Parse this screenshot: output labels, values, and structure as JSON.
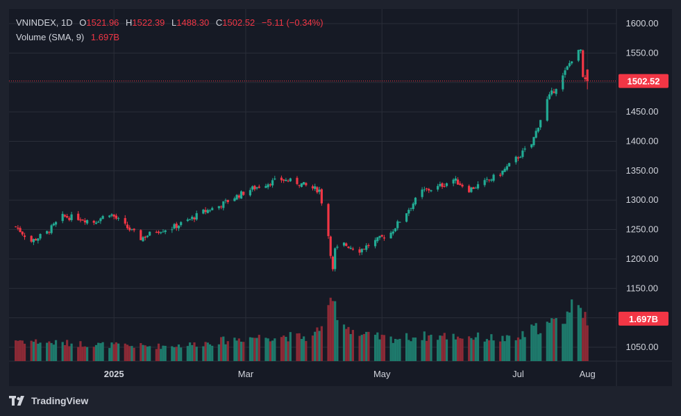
{
  "symbol": "VNINDEX",
  "interval": "1D",
  "ohlc": {
    "open_label": "O",
    "open": "1521.96",
    "high_label": "H",
    "high": "1522.39",
    "low_label": "L",
    "low": "1488.30",
    "close_label": "C",
    "close": "1502.52",
    "change": "−5.11 (−0.34%)"
  },
  "volume_legend": {
    "label": "Volume (SMA, 9)",
    "value": "1.697B"
  },
  "last_price_badge": "1502.52",
  "volume_badge": "1.697B",
  "brand": "TradingView",
  "colors": {
    "up": "#22ab94",
    "down": "#f23645",
    "up_volume": "#1e7a6c",
    "down_volume": "#8c2a36",
    "background": "#161a25",
    "frame": "#1e222d",
    "grid": "#2a2e39",
    "text": "#d1d4dc"
  },
  "chart_data": {
    "type": "candlestick",
    "y_ticks": [
      1050,
      1100,
      1150,
      1200,
      1250,
      1300,
      1350,
      1400,
      1450,
      1500,
      1550,
      1600
    ],
    "y_tick_labels": [
      "1050.00",
      "1100.00",
      "1150.00",
      "1200.00",
      "1250.00",
      "1300.00",
      "1350.00",
      "1400.00",
      "1450.00",
      "1500.00",
      "1550.00",
      "1600.00"
    ],
    "ylim": [
      1025,
      1620
    ],
    "x_ticks": [
      {
        "label": "2025",
        "date": "2025-01-01"
      },
      {
        "label": "Mar",
        "date": "2025-03-01"
      },
      {
        "label": "May",
        "date": "2025-05-01"
      },
      {
        "label": "Jul",
        "date": "2025-07-01"
      },
      {
        "label": "Aug",
        "date": "2025-08-01"
      }
    ],
    "xlim": [
      "2024-11-15",
      "2025-08-14"
    ],
    "last_price": 1502.52,
    "price_series": [
      [
        "2024-11-18",
        1255
      ],
      [
        "2024-11-25",
        1230
      ],
      [
        "2024-12-02",
        1245
      ],
      [
        "2024-12-09",
        1272
      ],
      [
        "2024-12-16",
        1270
      ],
      [
        "2024-12-23",
        1263
      ],
      [
        "2024-12-30",
        1278
      ],
      [
        "2025-01-06",
        1256
      ],
      [
        "2025-01-13",
        1235
      ],
      [
        "2025-01-20",
        1248
      ],
      [
        "2025-01-27",
        1253
      ],
      [
        "2025-02-03",
        1265
      ],
      [
        "2025-02-10",
        1280
      ],
      [
        "2025-02-17",
        1290
      ],
      [
        "2025-02-24",
        1305
      ],
      [
        "2025-03-03",
        1318
      ],
      [
        "2025-03-10",
        1328
      ],
      [
        "2025-03-17",
        1335
      ],
      [
        "2025-03-24",
        1330
      ],
      [
        "2025-03-31",
        1320
      ],
      [
        "2025-04-03",
        1317
      ],
      [
        "2025-04-07",
        1240
      ],
      [
        "2025-04-09",
        1180
      ],
      [
        "2025-04-10",
        1215
      ],
      [
        "2025-04-14",
        1225
      ],
      [
        "2025-04-21",
        1215
      ],
      [
        "2025-04-28",
        1230
      ],
      [
        "2025-05-05",
        1245
      ],
      [
        "2025-05-12",
        1280
      ],
      [
        "2025-05-19",
        1315
      ],
      [
        "2025-05-26",
        1322
      ],
      [
        "2025-06-02",
        1335
      ],
      [
        "2025-06-09",
        1318
      ],
      [
        "2025-06-16",
        1330
      ],
      [
        "2025-06-23",
        1345
      ],
      [
        "2025-06-30",
        1370
      ],
      [
        "2025-07-07",
        1395
      ],
      [
        "2025-07-14",
        1470
      ],
      [
        "2025-07-21",
        1510
      ],
      [
        "2025-07-25",
        1540
      ],
      [
        "2025-07-29",
        1555
      ],
      [
        "2025-07-30",
        1505
      ],
      [
        "2025-08-01",
        1502.52
      ]
    ],
    "volume_sma_last": 1.697,
    "volume_unit": "B",
    "volume_series": [
      [
        "2024-11-18",
        0.85
      ],
      [
        "2024-12-02",
        0.75
      ],
      [
        "2024-12-16",
        0.7
      ],
      [
        "2025-01-06",
        0.62
      ],
      [
        "2025-01-20",
        0.6
      ],
      [
        "2025-02-03",
        0.65
      ],
      [
        "2025-02-17",
        0.8
      ],
      [
        "2025-03-03",
        0.95
      ],
      [
        "2025-03-17",
        1.0
      ],
      [
        "2025-03-31",
        0.95
      ],
      [
        "2025-04-07",
        1.9
      ],
      [
        "2025-04-09",
        2.35
      ],
      [
        "2025-04-14",
        1.5
      ],
      [
        "2025-04-21",
        1.05
      ],
      [
        "2025-05-05",
        0.9
      ],
      [
        "2025-05-19",
        1.0
      ],
      [
        "2025-06-02",
        1.0
      ],
      [
        "2025-06-16",
        0.95
      ],
      [
        "2025-06-30",
        0.85
      ],
      [
        "2025-07-07",
        1.25
      ],
      [
        "2025-07-14",
        1.45
      ],
      [
        "2025-07-21",
        1.65
      ],
      [
        "2025-07-28",
        2.6
      ],
      [
        "2025-08-01",
        1.697
      ]
    ]
  }
}
